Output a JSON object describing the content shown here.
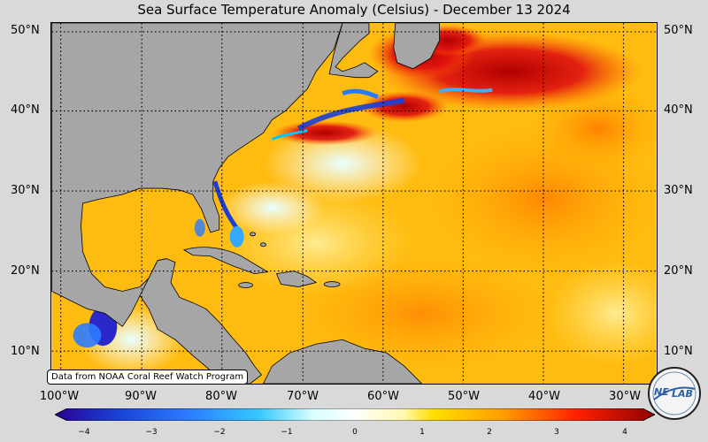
{
  "title": "Sea Surface Temperature Anomaly (Celsius) - December 13 2024",
  "lat_labels": [
    "10°N",
    "20°N",
    "30°N",
    "40°N",
    "50°N"
  ],
  "lon_labels": [
    "100°W",
    "90°W",
    "80°W",
    "70°W",
    "60°W",
    "50°W",
    "40°W",
    "30°W"
  ],
  "credit": "Data from NOAA Coral Reef Watch Program",
  "colorbar": {
    "ticks": [
      "−4",
      "−3",
      "−2",
      "−1",
      "0",
      "1",
      "2",
      "3",
      "4"
    ],
    "min": -4,
    "max": 4
  },
  "logo": {
    "text_left": "NE",
    "text_right": "LAB"
  },
  "colors": {
    "land": "#a6a6a6",
    "ocean_warm": "#ffb000",
    "cold": "#1a3fd6",
    "hot": "#c80000"
  }
}
